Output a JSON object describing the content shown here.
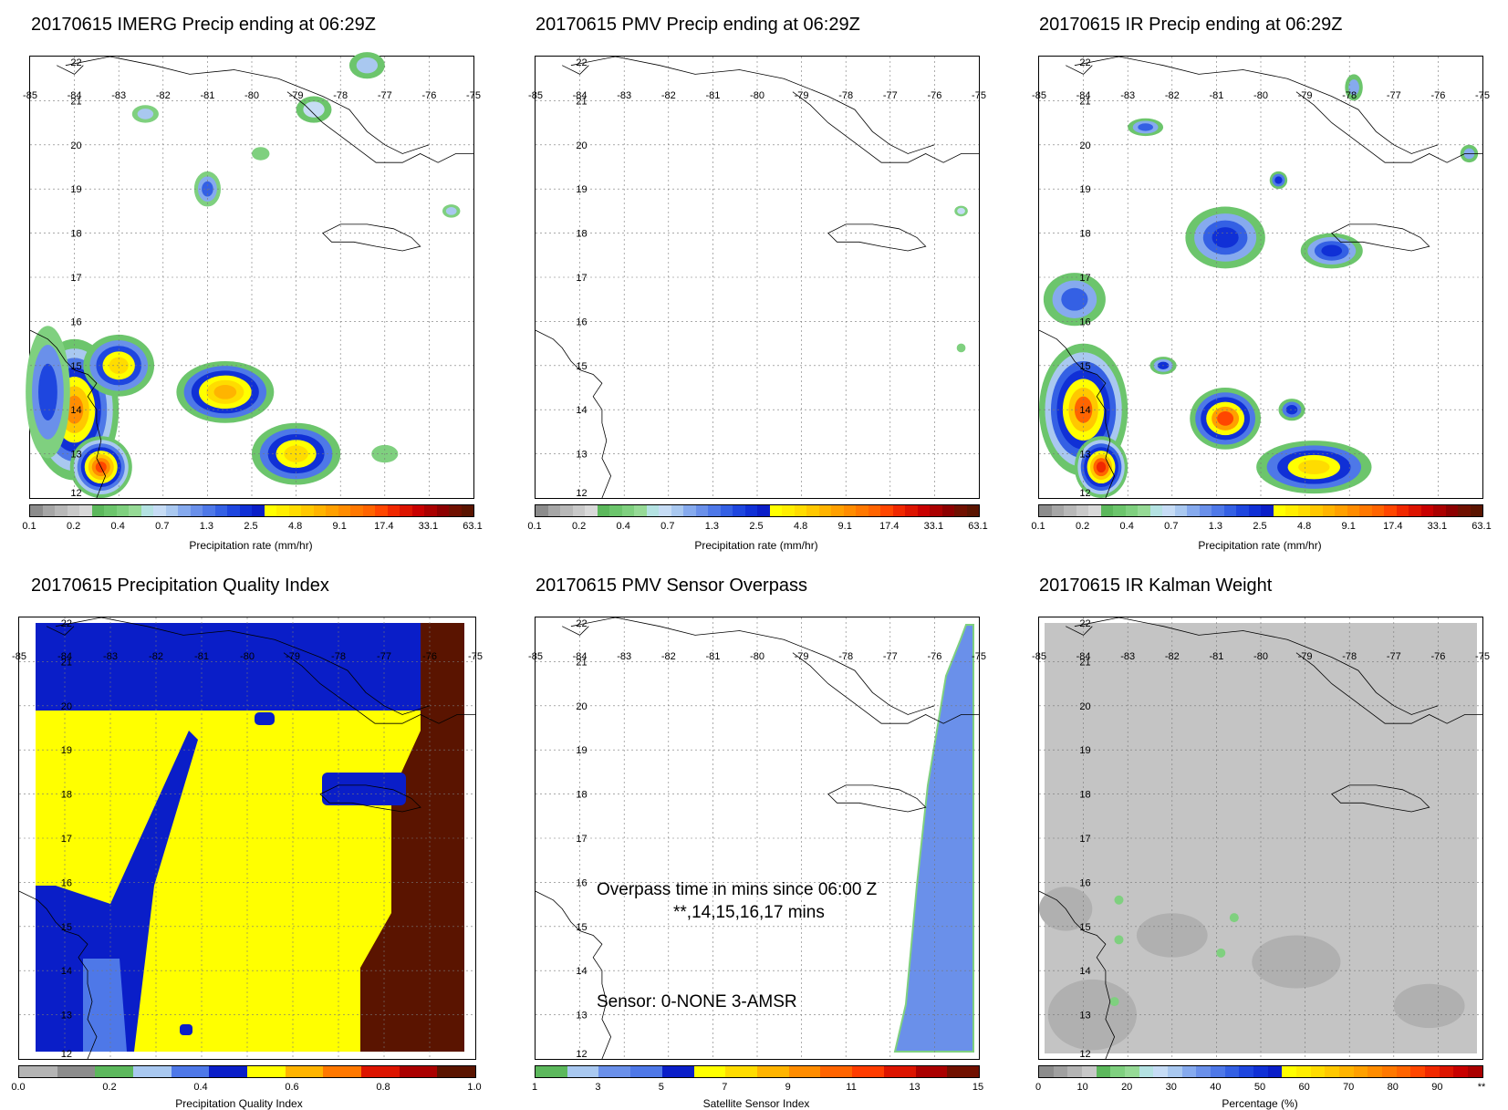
{
  "colors": {
    "precip": [
      "#8c8c8c",
      "#a6a6a6",
      "#b8b8b8",
      "#c9c9c9",
      "#d9d9d9",
      "#5cb85c",
      "#6cc56c",
      "#7fd07f",
      "#96da96",
      "#b4e2e2",
      "#c6dcf5",
      "#a9c8f0",
      "#86aaee",
      "#6a90ea",
      "#4e78e8",
      "#3460e4",
      "#1e46df",
      "#1030d6",
      "#0a1ec8",
      "#ffff00",
      "#ffee00",
      "#ffdc00",
      "#ffc800",
      "#ffb400",
      "#ffa000",
      "#ff8c00",
      "#ff7800",
      "#ff6400",
      "#ff4600",
      "#f02800",
      "#dc1400",
      "#c80000",
      "#aa0000",
      "#8c0000",
      "#701000",
      "#5a1400"
    ],
    "quality": [
      "#b4b4b4",
      "#8c8c8c",
      "#5cb85c",
      "#a9c8f0",
      "#4e78e8",
      "#0a1ec8",
      "#ffff00",
      "#ffb400",
      "#ff7800",
      "#dc1400",
      "#aa0000",
      "#5a1400"
    ],
    "sensor": [
      "#5cb85c",
      "#a9c8f0",
      "#6a90ea",
      "#4e78e8",
      "#0a1ec8",
      "#ffff00",
      "#ffdc00",
      "#ffb400",
      "#ff8c00",
      "#ff6400",
      "#ff3c00",
      "#dc1400",
      "#aa0000",
      "#701000"
    ],
    "kalman": [
      "#8c8c8c",
      "#a0a0a0",
      "#b4b4b4",
      "#c8c8c8",
      "#5cb85c",
      "#7fd07f",
      "#96da96",
      "#b4e2e2",
      "#c6dcf5",
      "#a9c8f0",
      "#86aaee",
      "#6a90ea",
      "#4e78e8",
      "#3460e4",
      "#1e46df",
      "#1030d6",
      "#0a1ec8",
      "#ffff00",
      "#ffee00",
      "#ffdc00",
      "#ffc800",
      "#ffb400",
      "#ffa000",
      "#ff8c00",
      "#ff7800",
      "#ff6400",
      "#ff4600",
      "#f02800",
      "#dc1400",
      "#c80000",
      "#aa0000"
    ]
  },
  "chart_data": [
    {
      "type": "heatmap",
      "title": "20170615 IMERG Precip ending at 06:29Z",
      "xlabel": "",
      "ylabel": "",
      "xlim": [
        -85,
        -75
      ],
      "ylim": [
        12,
        22
      ],
      "x_ticks": [
        "-85",
        "-84",
        "-83",
        "-82",
        "-81",
        "-80",
        "-79",
        "-78",
        "-77",
        "-76",
        "-75"
      ],
      "y_ticks": [
        "12",
        "13",
        "14",
        "15",
        "16",
        "17",
        "18",
        "19",
        "20",
        "21",
        "22"
      ],
      "colorbar": {
        "label": "Precipitation rate (mm/hr)",
        "ticks": [
          "0.1",
          "0.2",
          "0.4",
          "0.7",
          "1.3",
          "2.5",
          "4.8",
          "9.1",
          "17.4",
          "33.1",
          "63.1"
        ],
        "palette": "precip"
      }
    },
    {
      "type": "heatmap",
      "title": "20170615 PMV Precip ending at 06:29Z",
      "xlabel": "",
      "ylabel": "",
      "xlim": [
        -85,
        -75
      ],
      "ylim": [
        12,
        22
      ],
      "x_ticks": [
        "-85",
        "-84",
        "-83",
        "-82",
        "-81",
        "-80",
        "-79",
        "-78",
        "-77",
        "-76",
        "-75"
      ],
      "y_ticks": [
        "12",
        "13",
        "14",
        "15",
        "16",
        "17",
        "18",
        "19",
        "20",
        "21",
        "22"
      ],
      "colorbar": {
        "label": "Precipitation rate (mm/hr)",
        "ticks": [
          "0.1",
          "0.2",
          "0.4",
          "0.7",
          "1.3",
          "2.5",
          "4.8",
          "9.1",
          "17.4",
          "33.1",
          "63.1"
        ],
        "palette": "precip"
      }
    },
    {
      "type": "heatmap",
      "title": "20170615 IR Precip ending at 06:29Z",
      "xlabel": "",
      "ylabel": "",
      "xlim": [
        -85,
        -75
      ],
      "ylim": [
        12,
        22
      ],
      "x_ticks": [
        "-85",
        "-84",
        "-83",
        "-82",
        "-81",
        "-80",
        "-79",
        "-78",
        "-77",
        "-76",
        "-75"
      ],
      "y_ticks": [
        "12",
        "13",
        "14",
        "15",
        "16",
        "17",
        "18",
        "19",
        "20",
        "21",
        "22"
      ],
      "colorbar": {
        "label": "Precipitation rate (mm/hr)",
        "ticks": [
          "0.1",
          "0.2",
          "0.4",
          "0.7",
          "1.3",
          "2.5",
          "4.8",
          "9.1",
          "17.4",
          "33.1",
          "63.1"
        ],
        "palette": "precip"
      }
    },
    {
      "type": "heatmap",
      "title": "20170615 Precipitation Quality Index",
      "xlabel": "",
      "ylabel": "",
      "xlim": [
        -85,
        -75
      ],
      "ylim": [
        12,
        22
      ],
      "x_ticks": [
        "-85",
        "-84",
        "-83",
        "-82",
        "-81",
        "-80",
        "-79",
        "-78",
        "-77",
        "-76",
        "-75"
      ],
      "y_ticks": [
        "12",
        "13",
        "14",
        "15",
        "16",
        "17",
        "18",
        "19",
        "20",
        "21",
        "22"
      ],
      "colorbar": {
        "label": "Precipitation Quality Index",
        "ticks": [
          "0.0",
          "0.2",
          "0.4",
          "0.6",
          "0.8",
          "1.0"
        ],
        "palette": "quality"
      }
    },
    {
      "type": "heatmap",
      "title": "20170615 PMV Sensor Overpass",
      "xlabel": "",
      "ylabel": "",
      "xlim": [
        -85,
        -75
      ],
      "ylim": [
        12,
        22
      ],
      "x_ticks": [
        "-85",
        "-84",
        "-83",
        "-82",
        "-81",
        "-80",
        "-79",
        "-78",
        "-77",
        "-76",
        "-75"
      ],
      "y_ticks": [
        "12",
        "13",
        "14",
        "15",
        "16",
        "17",
        "18",
        "19",
        "20",
        "21",
        "22"
      ],
      "annotations": [
        "Overpass time in mins since 06:00 Z",
        "**,14,15,16,17 mins",
        "Sensor:   0-NONE  3-AMSR"
      ],
      "colorbar": {
        "label": "Satellite Sensor Index",
        "ticks": [
          "1",
          "3",
          "5",
          "7",
          "9",
          "11",
          "13",
          "15"
        ],
        "palette": "sensor"
      }
    },
    {
      "type": "heatmap",
      "title": "20170615 IR Kalman Weight",
      "xlabel": "",
      "ylabel": "",
      "xlim": [
        -85,
        -75
      ],
      "ylim": [
        12,
        22
      ],
      "x_ticks": [
        "-85",
        "-84",
        "-83",
        "-82",
        "-81",
        "-80",
        "-79",
        "-78",
        "-77",
        "-76",
        "-75"
      ],
      "y_ticks": [
        "12",
        "13",
        "14",
        "15",
        "16",
        "17",
        "18",
        "19",
        "20",
        "21",
        "22"
      ],
      "colorbar": {
        "label": "Percentage (%)",
        "ticks": [
          "0",
          "10",
          "20",
          "30",
          "40",
          "50",
          "60",
          "70",
          "80",
          "90",
          "**"
        ],
        "palette": "kalman"
      }
    }
  ]
}
